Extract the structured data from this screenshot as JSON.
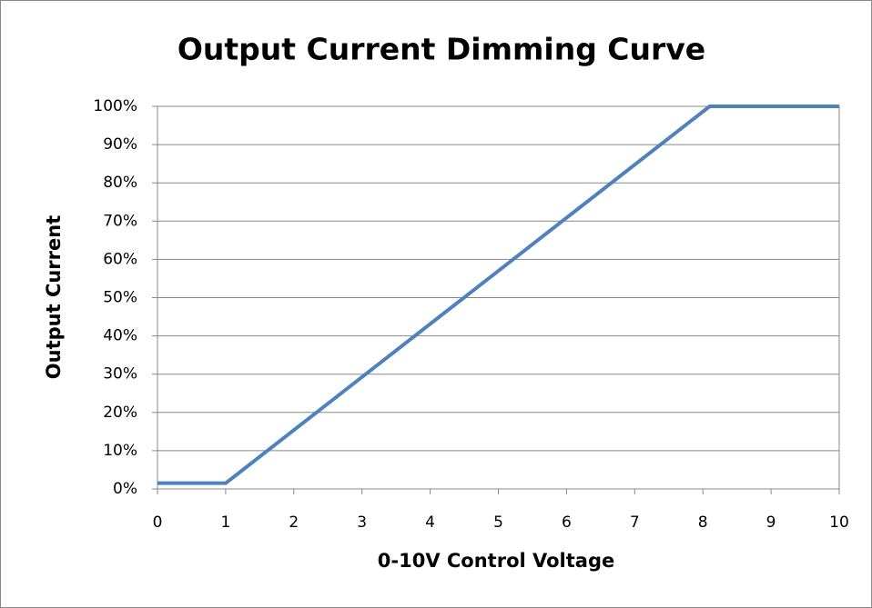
{
  "chart_data": {
    "type": "line",
    "title": "Output Current Dimming Curve",
    "x_label": "0-10V Control Voltage",
    "y_label": "Output Current",
    "x": [
      0,
      1,
      8.1,
      10
    ],
    "values": [
      1.5,
      1.5,
      100,
      100
    ],
    "color": "#4f81bd",
    "xlim": [
      0,
      10
    ],
    "xticks": [
      0,
      1,
      2,
      3,
      4,
      5,
      6,
      7,
      8,
      9,
      10
    ],
    "ylim": [
      0,
      100
    ],
    "yticks": [
      {
        "value": 0,
        "label": "0%"
      },
      {
        "value": 10,
        "label": "10%"
      },
      {
        "value": 20,
        "label": "20%"
      },
      {
        "value": 30,
        "label": "30%"
      },
      {
        "value": 40,
        "label": "40%"
      },
      {
        "value": 50,
        "label": "50%"
      },
      {
        "value": 60,
        "label": "60%"
      },
      {
        "value": 70,
        "label": "70%"
      },
      {
        "value": 80,
        "label": "80%"
      },
      {
        "value": 90,
        "label": "90%"
      },
      {
        "value": 100,
        "label": "100%"
      }
    ],
    "grid": true
  }
}
